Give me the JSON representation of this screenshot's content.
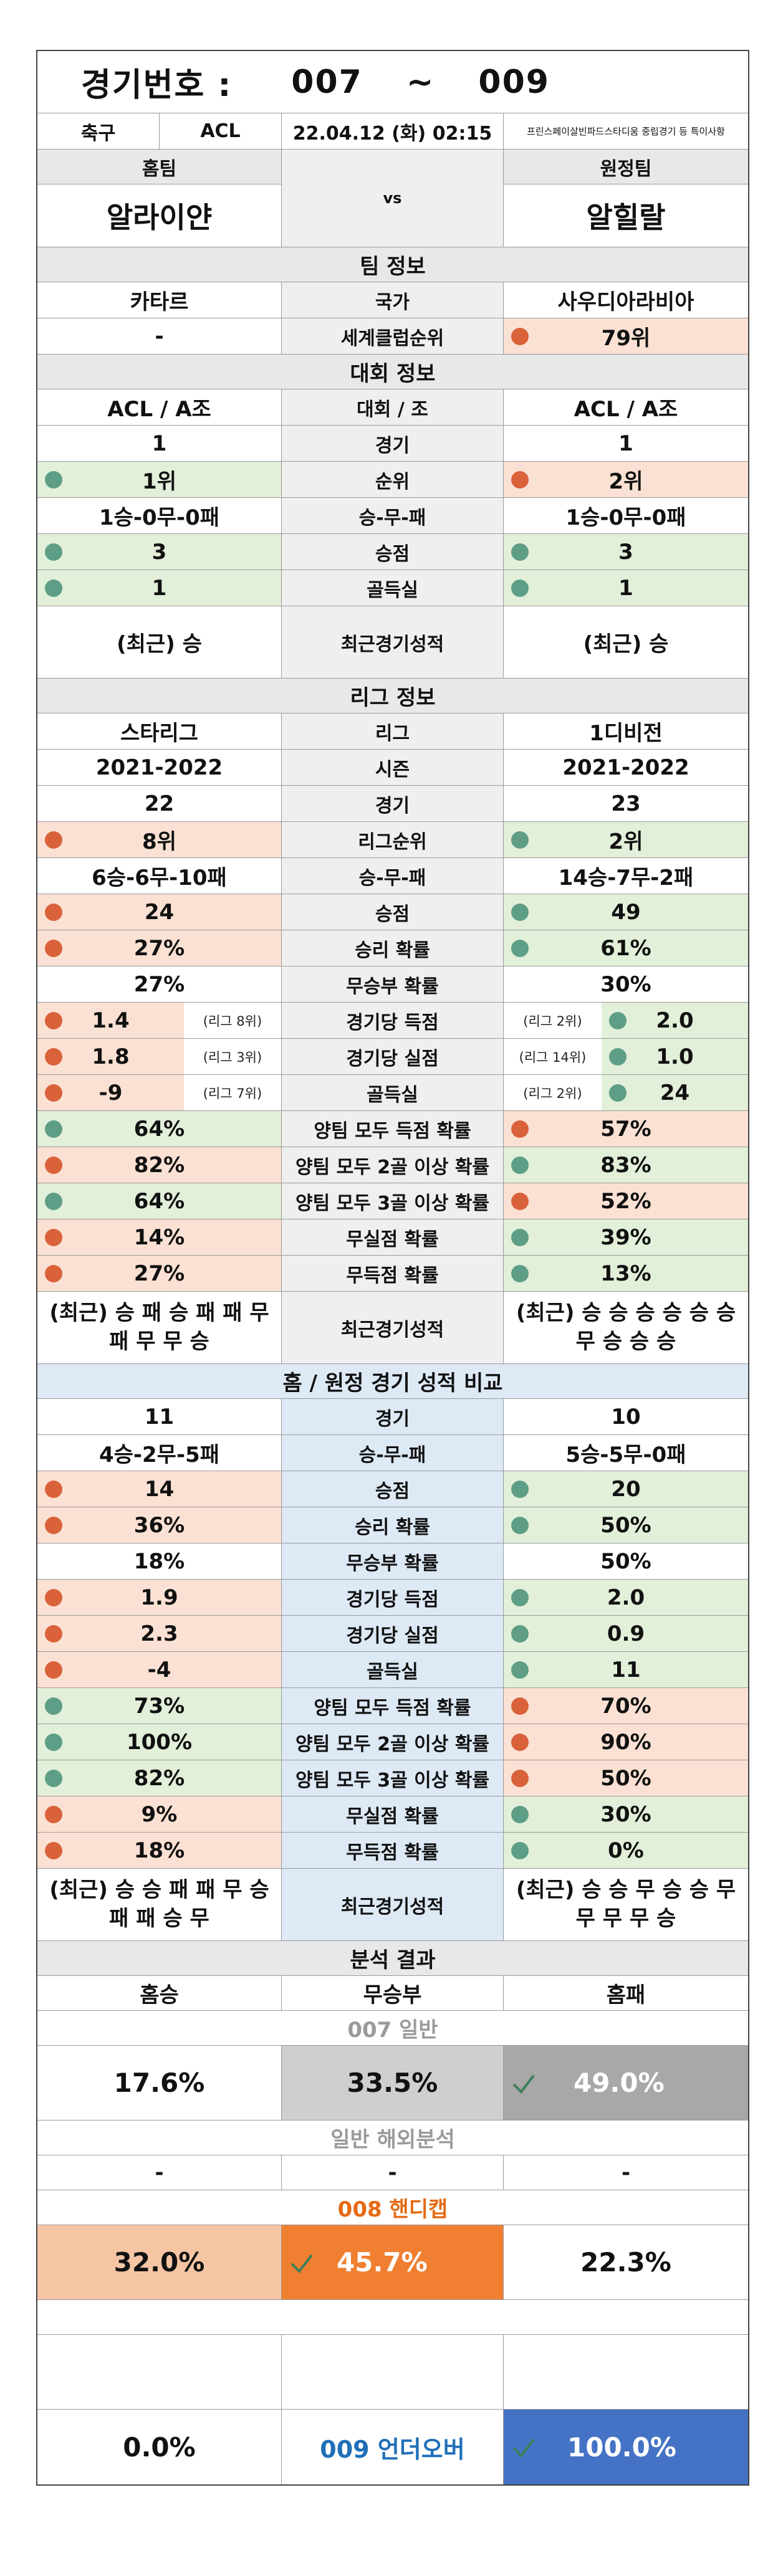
{
  "header": {
    "title_label": "경기번호 :",
    "num_from": "007",
    "tilde": "~",
    "num_to": "009",
    "sport": "축구",
    "league": "ACL",
    "datetime": "22.04.12 (화) 02:15",
    "notice": "프린스페이살빈파드스타디움 중립경기 등 특이사항"
  },
  "teams": {
    "home_label": "홈팀",
    "away_label": "원정팀",
    "home_name": "알라이얀",
    "vs": "vs",
    "away_name": "알힐랄"
  },
  "team_info": {
    "section": "팀 정보",
    "rows": [
      {
        "label": "국가",
        "home": "카타르",
        "away": "사우디아라비아"
      },
      {
        "label": "세계클럽순위",
        "home": "-",
        "away": "79위"
      }
    ]
  },
  "tournament": {
    "section": "대회 정보",
    "rows": [
      {
        "label": "대회 / 조",
        "home": "ACL / A조",
        "away": "ACL / A조"
      },
      {
        "label": "경기",
        "home": "1",
        "away": "1"
      },
      {
        "label": "순위",
        "home": "1위",
        "away": "2위"
      },
      {
        "label": "승-무-패",
        "home": "1승-0무-0패",
        "away": "1승-0무-0패"
      },
      {
        "label": "승점",
        "home": "3",
        "away": "3"
      },
      {
        "label": "골득실",
        "home": "1",
        "away": "1"
      },
      {
        "label": "최근경기성적",
        "home": "(최근) 승",
        "away": "(최근) 승"
      }
    ]
  },
  "league": {
    "section": "리그 정보",
    "rows": [
      {
        "label": "리그",
        "home": "스타리그",
        "away": "1디비전"
      },
      {
        "label": "시즌",
        "home": "2021-2022",
        "away": "2021-2022"
      },
      {
        "label": "경기",
        "home": "22",
        "away": "23"
      },
      {
        "label": "리그순위",
        "home": "8위",
        "away": "2위"
      },
      {
        "label": "승-무-패",
        "home": "6승-6무-10패",
        "away": "14승-7무-2패"
      },
      {
        "label": "승점",
        "home": "24",
        "away": "49"
      },
      {
        "label": "승리 확률",
        "home": "27%",
        "away": "61%"
      },
      {
        "label": "무승부 확률",
        "home": "27%",
        "away": "30%"
      },
      {
        "label": "경기당 득점",
        "home": "1.4",
        "home_rank": "(리그 8위)",
        "away": "2.0",
        "away_rank": "(리그 2위)"
      },
      {
        "label": "경기당 실점",
        "home": "1.8",
        "home_rank": "(리그 3위)",
        "away": "1.0",
        "away_rank": "(리그 14위)"
      },
      {
        "label": "골득실",
        "home": "-9",
        "home_rank": "(리그 7위)",
        "away": "24",
        "away_rank": "(리그 2위)"
      },
      {
        "label": "양팀 모두 득점 확률",
        "home": "64%",
        "away": "57%"
      },
      {
        "label": "양팀 모두 2골 이상 확률",
        "home": "82%",
        "away": "83%"
      },
      {
        "label": "양팀 모두 3골 이상 확률",
        "home": "64%",
        "away": "52%"
      },
      {
        "label": "무실점 확률",
        "home": "14%",
        "away": "39%"
      },
      {
        "label": "무득점 확률",
        "home": "27%",
        "away": "13%"
      },
      {
        "label": "최근경기성적",
        "home": "(최근) 승 패 승 패 패 무 패 무 무 승",
        "away": "(최근) 승 승 승 승 승 승 무 승 승 승"
      }
    ]
  },
  "home_away": {
    "section": "홈 / 원정 경기 성적 비교",
    "rows": [
      {
        "label": "경기",
        "home": "11",
        "away": "10"
      },
      {
        "label": "승-무-패",
        "home": "4승-2무-5패",
        "away": "5승-5무-0패"
      },
      {
        "label": "승점",
        "home": "14",
        "away": "20"
      },
      {
        "label": "승리 확률",
        "home": "36%",
        "away": "50%"
      },
      {
        "label": "무승부 확률",
        "home": "18%",
        "away": "50%"
      },
      {
        "label": "경기당 득점",
        "home": "1.9",
        "away": "2.0"
      },
      {
        "label": "경기당 실점",
        "home": "2.3",
        "away": "0.9"
      },
      {
        "label": "골득실",
        "home": "-4",
        "away": "11"
      },
      {
        "label": "양팀 모두 득점 확률",
        "home": "73%",
        "away": "70%"
      },
      {
        "label": "양팀 모두 2골 이상 확률",
        "home": "100%",
        "away": "90%"
      },
      {
        "label": "양팀 모두 3골 이상 확률",
        "home": "82%",
        "away": "50%"
      },
      {
        "label": "무실점 확률",
        "home": "9%",
        "away": "30%"
      },
      {
        "label": "무득점 확률",
        "home": "18%",
        "away": "0%"
      },
      {
        "label": "최근경기성적",
        "home": "(최근) 승 승 패 패 무 승 패 패 승 무",
        "away": "(최근) 승 승 무 승 승 무 무 무 무 승"
      }
    ]
  },
  "analysis": {
    "section": "분석 결과",
    "col_home_win": "홈승",
    "col_draw": "무승부",
    "col_home_loss": "홈패",
    "g007_label": "007 일반",
    "g007_home": "17.6%",
    "g007_draw": "33.5%",
    "g007_loss": "49.0%",
    "overseas_label": "일반 해외분석",
    "overseas_home": "-",
    "overseas_draw": "-",
    "overseas_loss": "-",
    "g008_label": "008 핸디캡",
    "g008_home": "32.0%",
    "g008_draw": "45.7%",
    "g008_loss": "22.3%",
    "g009_label": "009 언더오버",
    "g009_under": "0.0%",
    "g009_over": "100.0%"
  },
  "colors": {
    "green_cell": "#e2efd9",
    "orange_cell": "#fbe1d3",
    "green_dot": "#5e9e86",
    "orange_dot": "#d9623b",
    "draw_cell": "#cfcfcf",
    "loss_cell": "#a8a8a8",
    "handicap_home": "#f6c6a4",
    "handicap_draw": "#f07f31",
    "over_cell": "#4472c4",
    "accent_blue": "#1f6fb8",
    "accent_orange": "#e56a13"
  }
}
